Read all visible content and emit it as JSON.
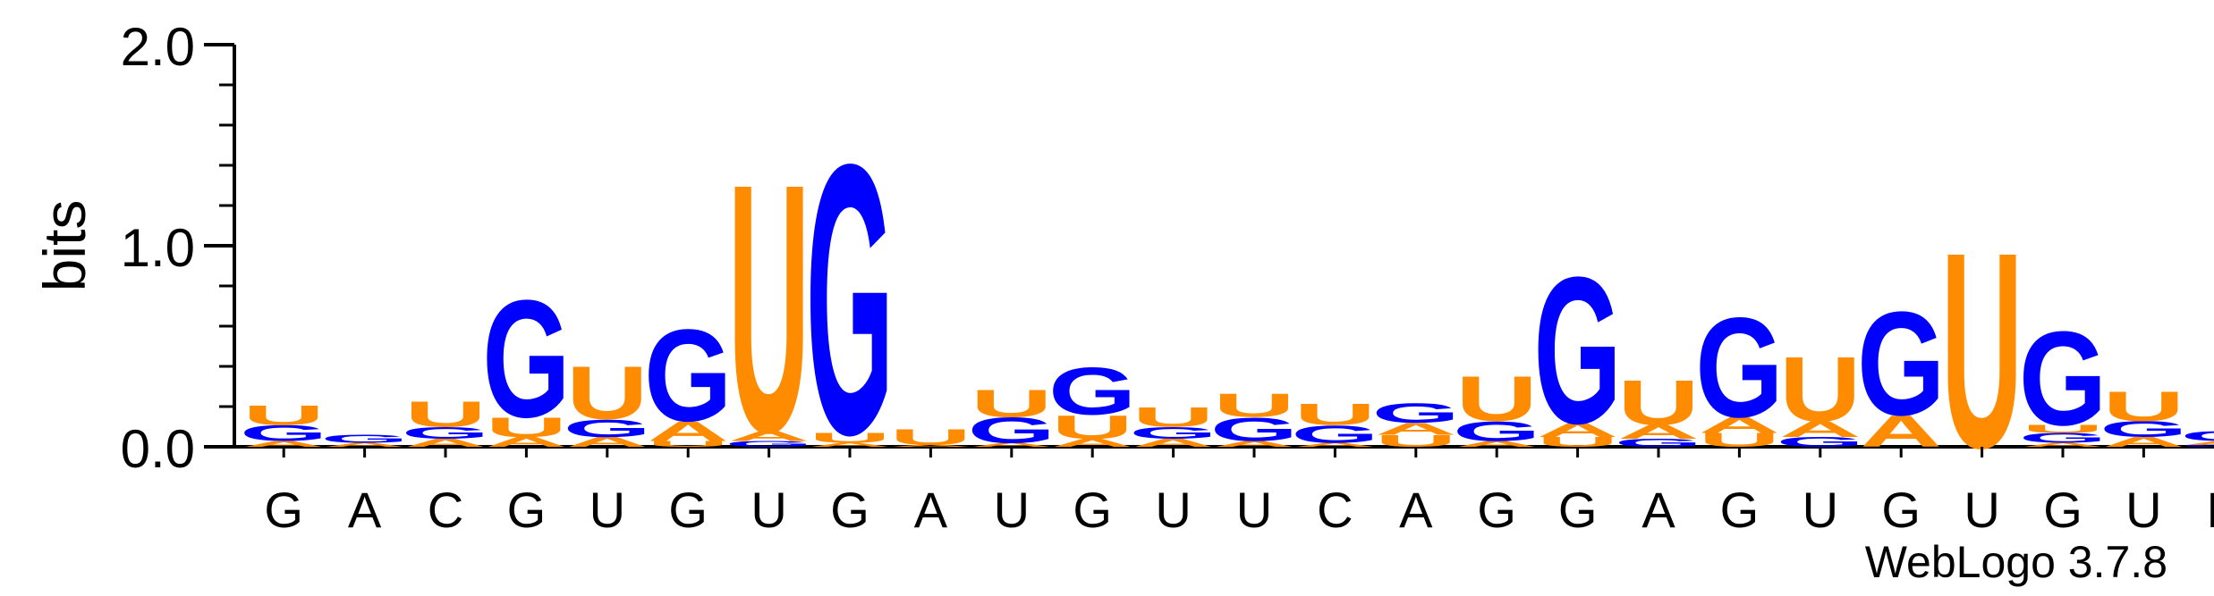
{
  "chart_data": {
    "type": "sequence-logo",
    "ylabel": "bits",
    "ylim": [
      0,
      2.0
    ],
    "yticks": [
      "0.0",
      "1.0",
      "2.0"
    ],
    "credit": "WebLogo 3.7.8",
    "colors": {
      "G": "#0000FF",
      "U": "#FF8C00",
      "A": "#FF8C00",
      "C": "#0000FF"
    },
    "columns": [
      {
        "label": "G",
        "stack": [
          [
            "A",
            0.03
          ],
          [
            "G",
            0.08
          ],
          [
            "U",
            0.1
          ]
        ]
      },
      {
        "label": "A",
        "stack": [
          [
            "A",
            0.02
          ],
          [
            "G",
            0.04
          ]
        ]
      },
      {
        "label": "C",
        "stack": [
          [
            "A",
            0.04
          ],
          [
            "G",
            0.06
          ],
          [
            "U",
            0.13
          ]
        ]
      },
      {
        "label": "G",
        "stack": [
          [
            "A",
            0.05
          ],
          [
            "U",
            0.1
          ],
          [
            "G",
            0.6
          ]
        ]
      },
      {
        "label": "U",
        "stack": [
          [
            "A",
            0.05
          ],
          [
            "G",
            0.09
          ],
          [
            "U",
            0.27
          ]
        ]
      },
      {
        "label": "G",
        "stack": [
          [
            "U",
            0.03
          ],
          [
            "A",
            0.1
          ],
          [
            "G",
            0.47
          ]
        ]
      },
      {
        "label": "U",
        "stack": [
          [
            "G",
            0.03
          ],
          [
            "A",
            0.05
          ],
          [
            "U",
            1.27
          ]
        ]
      },
      {
        "label": "G",
        "stack": [
          [
            "A",
            0.02
          ],
          [
            "U",
            0.05
          ],
          [
            "G",
            1.38
          ]
        ]
      },
      {
        "label": "A",
        "stack": [
          [
            "A",
            0.01
          ],
          [
            "U",
            0.08
          ]
        ]
      },
      {
        "label": "U",
        "stack": [
          [
            "A",
            0.02
          ],
          [
            "G",
            0.13
          ],
          [
            "U",
            0.14
          ]
        ]
      },
      {
        "label": "G",
        "stack": [
          [
            "A",
            0.04
          ],
          [
            "U",
            0.12
          ],
          [
            "G",
            0.24
          ]
        ]
      },
      {
        "label": "U",
        "stack": [
          [
            "A",
            0.04
          ],
          [
            "G",
            0.06
          ],
          [
            "U",
            0.1
          ]
        ]
      },
      {
        "label": "U",
        "stack": [
          [
            "A",
            0.03
          ],
          [
            "G",
            0.12
          ],
          [
            "U",
            0.12
          ]
        ]
      },
      {
        "label": "C",
        "stack": [
          [
            "A",
            0.02
          ],
          [
            "G",
            0.09
          ],
          [
            "U",
            0.11
          ]
        ]
      },
      {
        "label": "A",
        "stack": [
          [
            "U",
            0.06
          ],
          [
            "A",
            0.06
          ],
          [
            "G",
            0.1
          ]
        ]
      },
      {
        "label": "G",
        "stack": [
          [
            "A",
            0.03
          ],
          [
            "G",
            0.1
          ],
          [
            "U",
            0.23
          ]
        ]
      },
      {
        "label": "G",
        "stack": [
          [
            "U",
            0.05
          ],
          [
            "A",
            0.07
          ],
          [
            "G",
            0.75
          ]
        ]
      },
      {
        "label": "A",
        "stack": [
          [
            "G",
            0.04
          ],
          [
            "A",
            0.07
          ],
          [
            "U",
            0.23
          ]
        ]
      },
      {
        "label": "G",
        "stack": [
          [
            "U",
            0.07
          ],
          [
            "A",
            0.08
          ],
          [
            "G",
            0.51
          ]
        ]
      },
      {
        "label": "U",
        "stack": [
          [
            "G",
            0.05
          ],
          [
            "A",
            0.08
          ],
          [
            "U",
            0.33
          ]
        ]
      },
      {
        "label": "G",
        "stack": [
          [
            "A",
            0.16
          ],
          [
            "G",
            0.53
          ]
        ]
      },
      {
        "label": "U",
        "stack": [
          [
            "U",
            1.0
          ]
        ]
      },
      {
        "label": "G",
        "stack": [
          [
            "A",
            0.02
          ],
          [
            "G",
            0.05
          ],
          [
            "U",
            0.04
          ],
          [
            "G",
            0.48
          ]
        ]
      },
      {
        "label": "U",
        "stack": [
          [
            "A",
            0.05
          ],
          [
            "G",
            0.08
          ],
          [
            "U",
            0.15
          ]
        ]
      },
      {
        "label": "N",
        "stack": [
          [
            "G",
            0.01
          ],
          [
            "A",
            0.02
          ],
          [
            "G",
            0.05
          ]
        ]
      }
    ]
  }
}
